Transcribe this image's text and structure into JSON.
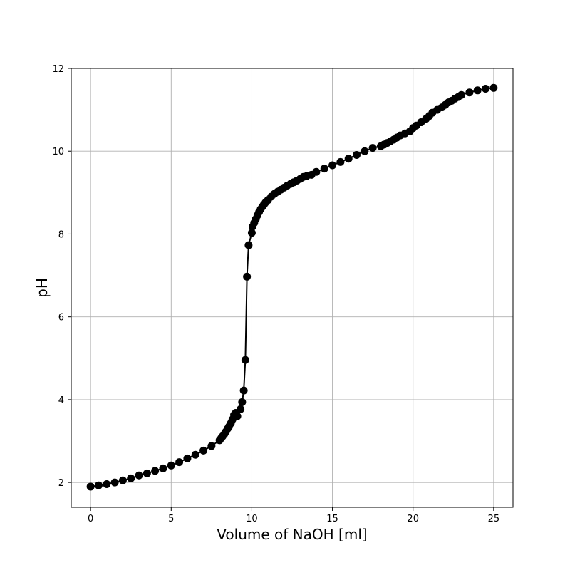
{
  "chart_data": {
    "type": "line",
    "title": "",
    "xlabel": "Volume of NaOH [ml]",
    "ylabel": "pH",
    "xlim": [
      -1.2,
      26.2
    ],
    "ylim": [
      1.4,
      12.0
    ],
    "xticks": [
      0,
      5,
      10,
      15,
      20,
      25
    ],
    "yticks": [
      2,
      4,
      6,
      8,
      10,
      12
    ],
    "grid": true,
    "line_color": "#000000",
    "marker_color": "#000000",
    "marker": "circle",
    "series": [
      {
        "x": [
          0,
          0.5,
          1,
          1.5,
          2,
          2.5,
          3,
          3.5,
          4,
          4.5,
          5,
          5.5,
          6,
          6.5,
          7,
          7.5,
          8,
          8.1,
          8.2,
          8.3,
          8.4,
          8.5,
          8.6,
          8.7,
          8.8,
          8.9,
          9.0,
          9.1,
          9.3,
          9.4,
          9.5,
          9.6,
          9.7,
          9.8,
          10.0,
          10.05,
          10.15,
          10.25,
          10.35,
          10.45,
          10.55,
          10.65,
          10.75,
          10.85,
          11.0,
          11.2,
          11.4,
          11.6,
          11.8,
          12.0,
          12.2,
          12.4,
          12.6,
          12.8,
          13.0,
          13.2,
          13.4,
          13.7,
          14.0,
          14.5,
          15.0,
          15.5,
          16.0,
          16.5,
          17.0,
          17.5,
          18.0,
          18.2,
          18.4,
          18.6,
          18.8,
          19.0,
          19.2,
          19.5,
          19.8,
          20.0,
          20.2,
          20.5,
          20.8,
          21.0,
          21.2,
          21.5,
          21.8,
          22.0,
          22.2,
          22.4,
          22.6,
          22.8,
          23.0,
          23.5,
          24.0,
          24.5,
          25.0
        ],
        "y": [
          1.9,
          1.93,
          1.96,
          2.0,
          2.05,
          2.1,
          2.17,
          2.22,
          2.28,
          2.34,
          2.41,
          2.49,
          2.58,
          2.67,
          2.77,
          2.88,
          3.02,
          3.07,
          3.12,
          3.17,
          3.23,
          3.3,
          3.36,
          3.43,
          3.52,
          3.63,
          3.68,
          3.6,
          3.77,
          3.94,
          4.22,
          4.96,
          6.97,
          7.73,
          8.03,
          8.18,
          8.27,
          8.36,
          8.45,
          8.53,
          8.6,
          8.66,
          8.71,
          8.76,
          8.82,
          8.9,
          8.97,
          9.02,
          9.07,
          9.12,
          9.17,
          9.21,
          9.25,
          9.29,
          9.33,
          9.38,
          9.4,
          9.43,
          9.5,
          9.58,
          9.66,
          9.74,
          9.82,
          9.91,
          10.0,
          10.08,
          10.12,
          10.16,
          10.2,
          10.24,
          10.28,
          10.33,
          10.38,
          10.43,
          10.48,
          10.56,
          10.62,
          10.7,
          10.78,
          10.85,
          10.93,
          11.0,
          11.06,
          11.12,
          11.18,
          11.22,
          11.27,
          11.31,
          11.36,
          11.42,
          11.47,
          11.51,
          11.53
        ]
      }
    ]
  }
}
